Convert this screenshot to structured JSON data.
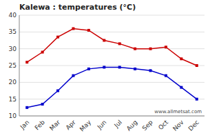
{
  "chart_data": {
    "type": "line",
    "title": "Kalewa : temperatures (°C)",
    "categories": [
      "Jan",
      "Feb",
      "Mar",
      "Apr",
      "May",
      "Jun",
      "Jul",
      "Aug",
      "Sep",
      "Oct",
      "Nov",
      "Dec"
    ],
    "series": [
      {
        "color": "#cc0000",
        "marker": "square",
        "values": [
          26,
          29,
          33.5,
          36,
          35.5,
          32.5,
          31.5,
          30,
          30,
          30.5,
          27,
          25
        ]
      },
      {
        "color": "#0000cc",
        "marker": "square",
        "values": [
          12.5,
          13.5,
          17.5,
          22,
          24,
          24.5,
          24.5,
          24,
          23.5,
          22,
          18.5,
          15
        ]
      }
    ],
    "ylim": [
      10,
      40
    ],
    "yticks": [
      10,
      15,
      20,
      25,
      30,
      35,
      40
    ],
    "grid": true,
    "annotations": [
      "www.allmetsat.com"
    ]
  }
}
